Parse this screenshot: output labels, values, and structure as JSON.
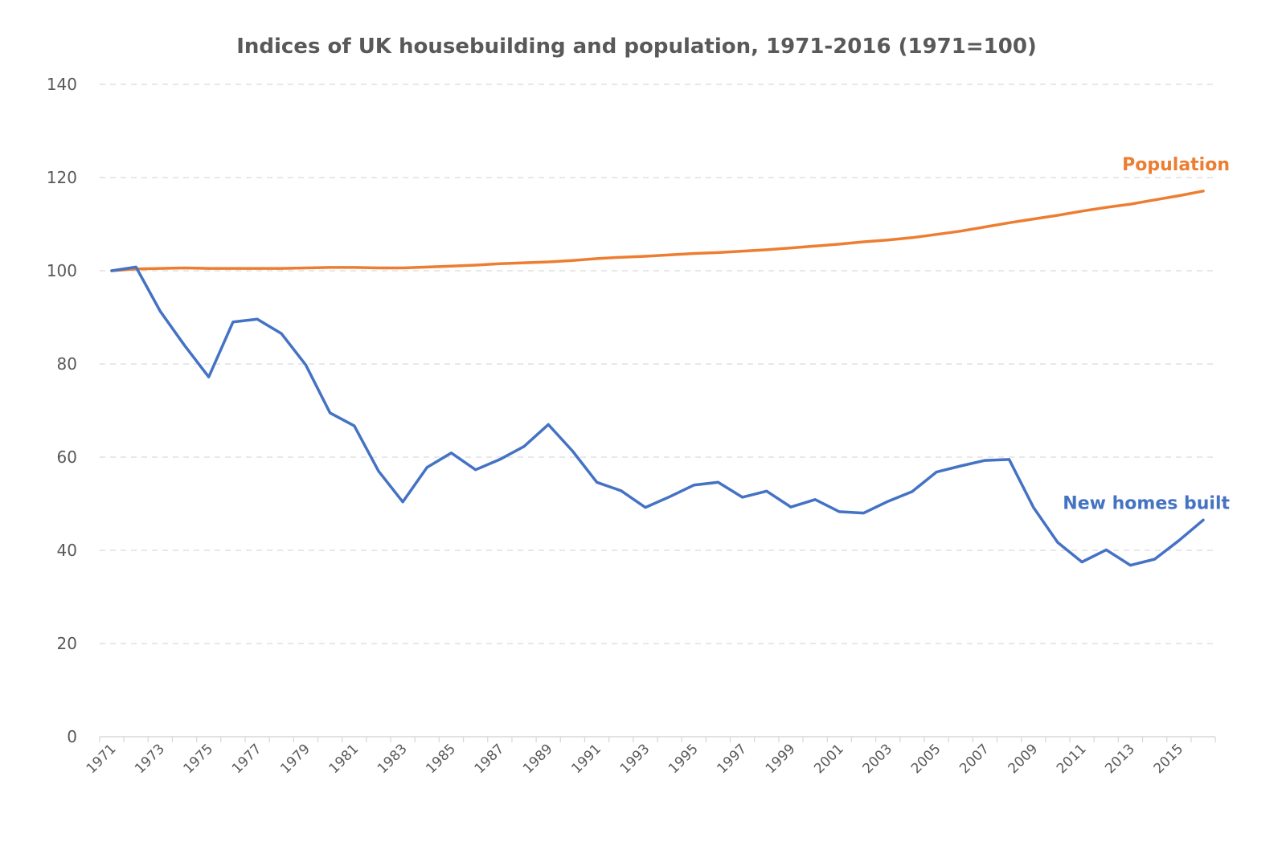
{
  "chart_data": {
    "type": "line",
    "title": "Indices of UK housebuilding and population, 1971-2016  (1971=100)",
    "xlabel": "",
    "ylabel": "",
    "ylim": [
      0,
      140
    ],
    "y_ticks": [
      0,
      20,
      40,
      60,
      80,
      100,
      120,
      140
    ],
    "x_ticks": [
      "1971",
      "1973",
      "1975",
      "1977",
      "1979",
      "1981",
      "1983",
      "1985",
      "1987",
      "1989",
      "1991",
      "1993",
      "1995",
      "1997",
      "1999",
      "2001",
      "2003",
      "2005",
      "2007",
      "2009",
      "2011",
      "2013",
      "2015"
    ],
    "grid": true,
    "legend": "inline labels at line ends",
    "x": [
      1971,
      1972,
      1973,
      1974,
      1975,
      1976,
      1977,
      1978,
      1979,
      1980,
      1981,
      1982,
      1983,
      1984,
      1985,
      1986,
      1987,
      1988,
      1989,
      1990,
      1991,
      1992,
      1993,
      1994,
      1995,
      1996,
      1997,
      1998,
      1999,
      2000,
      2001,
      2002,
      2003,
      2004,
      2005,
      2006,
      2007,
      2008,
      2009,
      2010,
      2011,
      2012,
      2013,
      2014,
      2015,
      2016
    ],
    "series": [
      {
        "name": "Population",
        "color": "#ed7d31",
        "values": [
          100,
          100.4,
          100.5,
          100.6,
          100.5,
          100.5,
          100.5,
          100.5,
          100.6,
          100.7,
          100.7,
          100.6,
          100.6,
          100.8,
          101.0,
          101.2,
          101.5,
          101.7,
          101.9,
          102.2,
          102.6,
          102.9,
          103.1,
          103.4,
          103.7,
          103.9,
          104.2,
          104.5,
          104.9,
          105.3,
          105.7,
          106.2,
          106.6,
          107.1,
          107.8,
          108.5,
          109.4,
          110.3,
          111.1,
          111.9,
          112.8,
          113.6,
          114.3,
          115.2,
          116.1,
          117.1
        ]
      },
      {
        "name": "New homes built",
        "color": "#4472c4",
        "values": [
          100,
          100.8,
          91.3,
          84.0,
          77.2,
          89.0,
          89.6,
          86.5,
          79.8,
          69.5,
          66.7,
          57.0,
          50.4,
          57.8,
          60.9,
          57.3,
          59.5,
          62.3,
          67.0,
          61.3,
          54.6,
          52.8,
          49.2,
          51.5,
          54.0,
          54.6,
          51.4,
          52.7,
          49.3,
          50.9,
          48.3,
          48.0,
          50.5,
          52.6,
          56.8,
          58.1,
          59.3,
          59.5,
          49.2,
          41.7,
          37.5,
          40.1,
          36.8,
          38.1,
          42.1,
          46.5
        ]
      }
    ]
  }
}
